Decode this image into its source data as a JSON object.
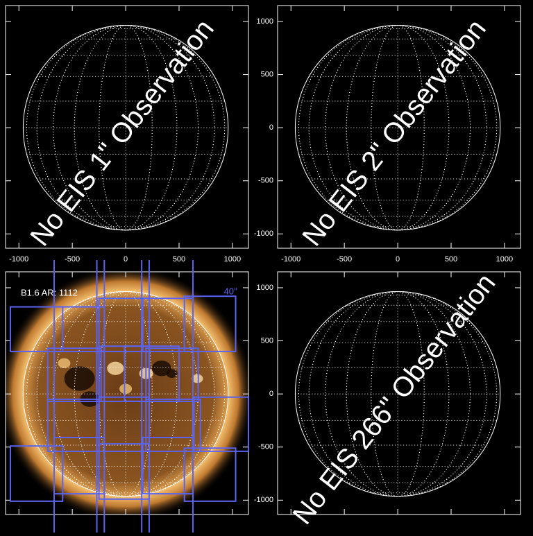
{
  "chart_data": [
    {
      "type": "solar-disk",
      "overlay_text": "No EIS 1\" Observation",
      "xlim": [
        -1125,
        1150
      ],
      "ylim": [
        -1135,
        1150
      ],
      "xticks": [
        -1000,
        -500,
        0,
        500,
        1000
      ],
      "yticks": [
        -1000,
        -500,
        0,
        500,
        1000
      ],
      "disk_radius": 960
    },
    {
      "type": "solar-disk",
      "overlay_text": "No EIS 2\" Observation",
      "xlim": [
        -1125,
        1150
      ],
      "ylim": [
        -1135,
        1150
      ],
      "xticks": [
        -1000,
        -500,
        0,
        500,
        1000
      ],
      "yticks": [
        -1000,
        -500,
        0,
        500,
        1000
      ],
      "disk_radius": 960
    },
    {
      "type": "solar-image",
      "annotations": [
        "B1.6 AR: 1112",
        "40''"
      ],
      "xlim": [
        -1125,
        1150
      ],
      "ylim": [
        -1135,
        1150
      ],
      "xticks": [
        -1000,
        -500,
        0,
        500,
        1000
      ],
      "yticks": [
        -1000,
        -500,
        0,
        500,
        1000
      ],
      "disk_radius": 960,
      "rasters": [
        [
          -1080,
          -590,
          400,
          820
        ],
        [
          -670,
          -200,
          400,
          820
        ],
        [
          -250,
          220,
          400,
          900
        ],
        [
          160,
          630,
          400,
          900
        ],
        [
          550,
          1030,
          400,
          920
        ],
        [
          -730,
          -230,
          -70,
          430
        ],
        [
          -250,
          220,
          -70,
          450
        ],
        [
          -10,
          500,
          -70,
          450
        ],
        [
          190,
          680,
          -70,
          430
        ],
        [
          -730,
          -250,
          -540,
          -50
        ],
        [
          -250,
          220,
          -540,
          -30
        ],
        [
          190,
          700,
          -540,
          -50
        ],
        [
          640,
          1150,
          -540,
          -30
        ],
        [
          -1080,
          -590,
          -1010,
          -490
        ],
        [
          -670,
          -200,
          -940,
          -410
        ],
        [
          -250,
          220,
          -990,
          -470
        ],
        [
          160,
          630,
          -940,
          -410
        ],
        [
          550,
          1030,
          -1010,
          -510
        ]
      ],
      "slits": [
        -670,
        -270,
        -200,
        150,
        220,
        630
      ]
    },
    {
      "type": "solar-disk",
      "overlay_text": "No EIS 266\" Observation",
      "xlim": [
        -1125,
        1150
      ],
      "ylim": [
        -1135,
        1150
      ],
      "xticks": [
        -1000,
        -500,
        0,
        500,
        1000
      ],
      "yticks": [
        -1000,
        -500,
        0,
        500,
        1000
      ],
      "disk_radius": 960
    }
  ]
}
